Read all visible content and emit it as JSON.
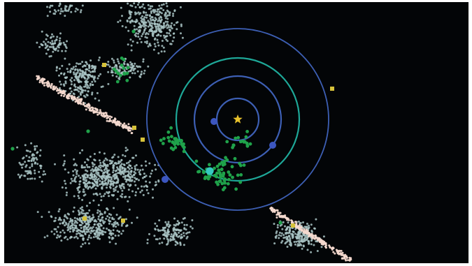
{
  "colors": {
    "background": "#030507",
    "frame": "#ffffff",
    "asteroid_cloud": "#a9c4c4",
    "trojan_streak": "#f4d9cf",
    "near_earth_object": "#1fa24a",
    "comet_marker": "#d6c23a",
    "orbit_blue": "#3d5fb4",
    "orbit_teal": "#1ea898",
    "planet_blue": "#3c56c0",
    "planet_cyan": "#36c9c0",
    "sun": "#e8c22c"
  },
  "icons": {
    "sun": "sun-star-icon",
    "planet": "planet-dot-icon",
    "comet": "comet-square-icon"
  }
}
